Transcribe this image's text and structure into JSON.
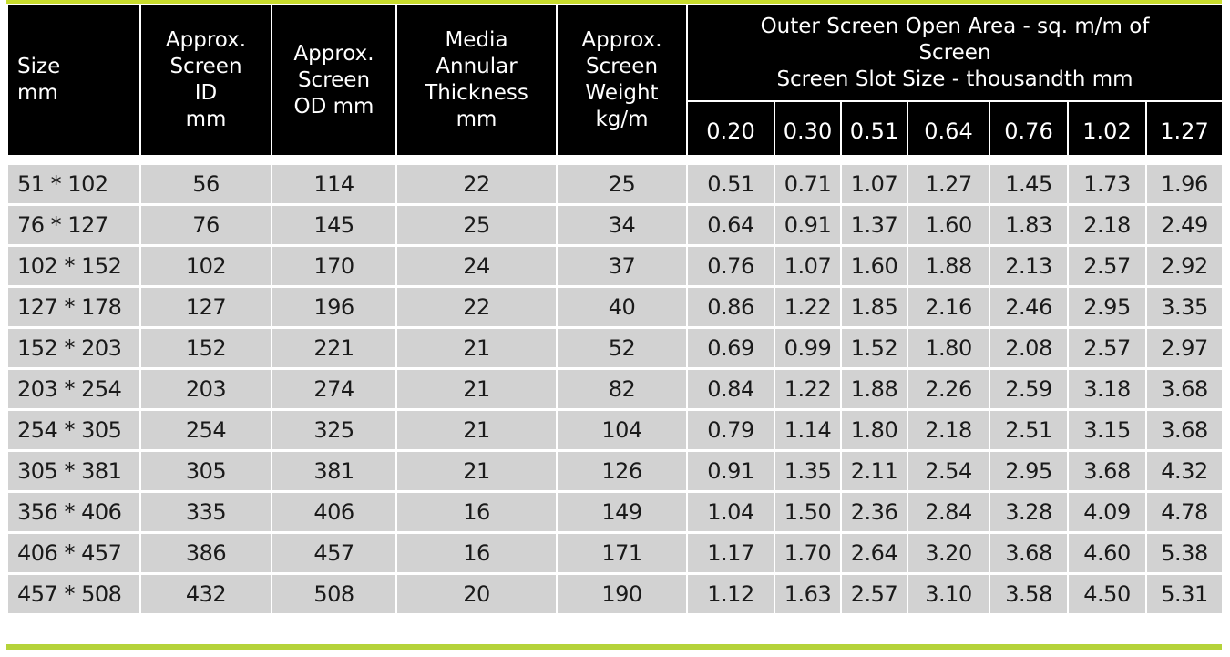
{
  "table": {
    "headers": {
      "size": [
        "Size",
        "mm"
      ],
      "screen_id": [
        "Approx.",
        "Screen",
        "ID",
        "mm"
      ],
      "screen_od": [
        "Approx.",
        "Screen",
        "OD mm"
      ],
      "media": [
        "Media",
        "Annular",
        "Thickness",
        "mm"
      ],
      "weight": [
        "Approx.",
        "Screen",
        "Weight",
        "kg/m"
      ],
      "group": [
        "Outer Screen Open Area - sq. m/m of",
        "Screen",
        "Screen Slot Size - thousandth mm"
      ],
      "slot_sizes": [
        "0.20",
        "0.30",
        "0.51",
        "0.64",
        "0.76",
        "1.02",
        "1.27"
      ]
    },
    "rows": [
      [
        "51 * 102",
        "56",
        "114",
        "22",
        "25",
        "0.51",
        "0.71",
        "1.07",
        "1.27",
        "1.45",
        "1.73",
        "1.96"
      ],
      [
        "76 * 127",
        "76",
        "145",
        "25",
        "34",
        "0.64",
        "0.91",
        "1.37",
        "1.60",
        "1.83",
        "2.18",
        "2.49"
      ],
      [
        "102 * 152",
        "102",
        "170",
        "24",
        "37",
        "0.76",
        "1.07",
        "1.60",
        "1.88",
        "2.13",
        "2.57",
        "2.92"
      ],
      [
        "127 * 178",
        "127",
        "196",
        "22",
        "40",
        "0.86",
        "1.22",
        "1.85",
        "2.16",
        "2.46",
        "2.95",
        "3.35"
      ],
      [
        "152 * 203",
        "152",
        "221",
        "21",
        "52",
        "0.69",
        "0.99",
        "1.52",
        "1.80",
        "2.08",
        "2.57",
        "2.97"
      ],
      [
        "203 * 254",
        "203",
        "274",
        "21",
        "82",
        "0.84",
        "1.22",
        "1.88",
        "2.26",
        "2.59",
        "3.18",
        "3.68"
      ],
      [
        "254 * 305",
        "254",
        "325",
        "21",
        "104",
        "0.79",
        "1.14",
        "1.80",
        "2.18",
        "2.51",
        "3.15",
        "3.68"
      ],
      [
        "305 * 381",
        "305",
        "381",
        "21",
        "126",
        "0.91",
        "1.35",
        "2.11",
        "2.54",
        "2.95",
        "3.68",
        "4.32"
      ],
      [
        "356 * 406",
        "335",
        "406",
        "16",
        "149",
        "1.04",
        "1.50",
        "2.36",
        "2.84",
        "3.28",
        "4.09",
        "4.78"
      ],
      [
        "406 * 457",
        "386",
        "457",
        "16",
        "171",
        "1.17",
        "1.70",
        "2.64",
        "3.20",
        "3.68",
        "4.60",
        "5.38"
      ],
      [
        "457 * 508",
        "432",
        "508",
        "20",
        "190",
        "1.12",
        "1.63",
        "2.57",
        "3.10",
        "3.58",
        "4.50",
        "5.31"
      ]
    ]
  },
  "colors": {
    "header_bg": "#000000",
    "header_text": "#ffffff",
    "row_bg": "#d2d2d2",
    "accent": "#b5d33a"
  }
}
